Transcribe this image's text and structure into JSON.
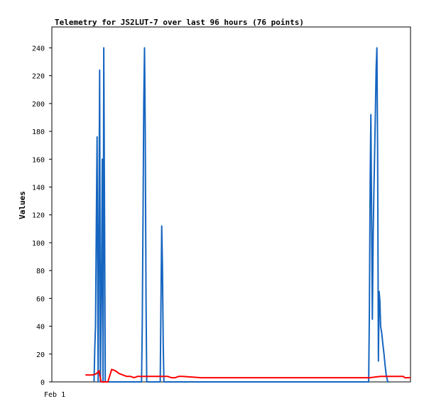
{
  "chart_data": {
    "type": "line",
    "title": "Telemetry for JS2LUT-7 over last 96 hours (76 points)",
    "xlabel": "",
    "ylabel": "Values",
    "x_tick_labels": [
      "Feb 1"
    ],
    "y_ticks": [
      0,
      20,
      40,
      60,
      80,
      100,
      120,
      140,
      160,
      180,
      200,
      220,
      240
    ],
    "ylim": [
      0,
      255
    ],
    "xlim": [
      0,
      96
    ],
    "grid": false,
    "legend": "none",
    "series": [
      {
        "color": "#1565c0",
        "x": [
          11.3,
          11.5,
          11.7,
          11.9,
          12.1,
          12.4,
          12.6,
          12.8,
          13.0,
          13.3,
          13.5,
          13.7,
          13.9,
          14.1,
          14.3,
          14.5,
          14.7,
          14.9,
          15.1,
          15.3,
          15.6,
          15.8,
          16.0,
          16.2,
          24.0,
          24.2,
          24.4,
          24.6,
          24.8,
          25.0,
          25.2,
          25.4,
          29.0,
          29.2,
          29.4,
          29.6,
          29.8,
          30.0,
          30.2,
          84.8,
          85.0,
          85.2,
          85.4,
          85.6,
          85.8,
          86.0,
          86.2,
          86.4,
          86.6,
          86.8,
          87.0,
          87.2,
          87.4,
          87.6,
          87.8,
          88.0,
          88.3,
          88.6,
          88.9,
          89.2,
          89.5,
          89.9,
          90.2
        ],
        "values": [
          0,
          25,
          40,
          112,
          176,
          0,
          112,
          224,
          0,
          80,
          160,
          0,
          240,
          120,
          0,
          0,
          0,
          0,
          0,
          0,
          0,
          0,
          0,
          0,
          0,
          40,
          120,
          200,
          240,
          180,
          60,
          0,
          0,
          56,
          112,
          84,
          28,
          0,
          0,
          0,
          50,
          145,
          192,
          112,
          45,
          105,
          135,
          165,
          195,
          225,
          240,
          165,
          15,
          65,
          58,
          40,
          35,
          27,
          20,
          12,
          5,
          0,
          0
        ]
      },
      {
        "color": "#ff0000",
        "x": [
          9.0,
          11.0,
          12.0,
          12.6,
          13.2,
          14.0,
          15.0,
          16.0,
          17.0,
          18.0,
          19.0,
          20.0,
          21.0,
          22.0,
          23.0,
          25.0,
          27.0,
          29.0,
          31.0,
          32.0,
          33.0,
          34.0,
          35.0,
          40.0,
          50.0,
          60.0,
          70.0,
          80.0,
          85.0,
          88.0,
          91.0,
          93.0,
          94.0,
          94.5,
          96.0
        ],
        "values": [
          5,
          5,
          6,
          8,
          0,
          0,
          0,
          9,
          8,
          6,
          5,
          4,
          4,
          3,
          4,
          4,
          4,
          4,
          4,
          3,
          3,
          4,
          4,
          3,
          3,
          3,
          3,
          3,
          3,
          4,
          4,
          4,
          4,
          3,
          3
        ]
      }
    ]
  }
}
